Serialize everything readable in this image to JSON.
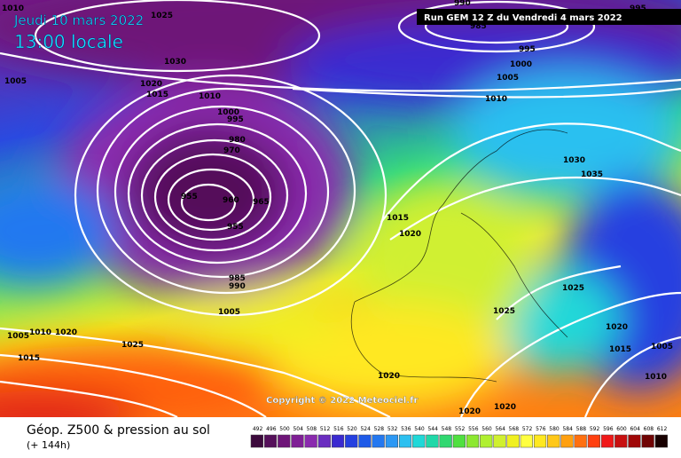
{
  "header": {
    "date": "Jeudi 10 mars 2022",
    "time": "13:00 locale",
    "run": "Run GEM 12 Z du Vendredi 4 mars 2022"
  },
  "copyright": "Copyright © 2022 Meteociel.fr",
  "footer": {
    "title": "Géop. Z500 & pression au sol",
    "lead": "(+ 144h)"
  },
  "colorbar": {
    "values": [
      492,
      496,
      500,
      504,
      508,
      512,
      516,
      520,
      524,
      528,
      532,
      536,
      540,
      544,
      548,
      552,
      556,
      560,
      564,
      568,
      572,
      576,
      580,
      584,
      588,
      592,
      596,
      600,
      604,
      608,
      612
    ],
    "colors": [
      "#3c0a3c",
      "#55105a",
      "#6e1578",
      "#7f1f95",
      "#8a2aae",
      "#6a2dc0",
      "#3a2ad0",
      "#2540e0",
      "#1e5ae8",
      "#2478f0",
      "#2c98f4",
      "#2cc0f0",
      "#20d8d8",
      "#20d8a8",
      "#30d870",
      "#50e040",
      "#8ce830",
      "#b0f030",
      "#d0f030",
      "#f0f020",
      "#ffff40",
      "#ffe820",
      "#ffc818",
      "#ffa010",
      "#ff7010",
      "#ff4010",
      "#f01818",
      "#c81010",
      "#a00808",
      "#700404",
      "#180000"
    ]
  },
  "isobar_labels": [
    1010,
    1025,
    990,
    985,
    995,
    1005,
    1030,
    1020,
    1015,
    1010,
    995,
    1000,
    1005,
    1010,
    1000,
    995,
    980,
    970,
    955,
    960,
    965,
    955,
    985,
    990,
    1005,
    1030,
    1035,
    1015,
    1020,
    1025,
    1025,
    1005,
    1010,
    1020,
    1025,
    1015,
    1020,
    1015,
    1005,
    1010,
    1020,
    1020,
    1020
  ]
}
